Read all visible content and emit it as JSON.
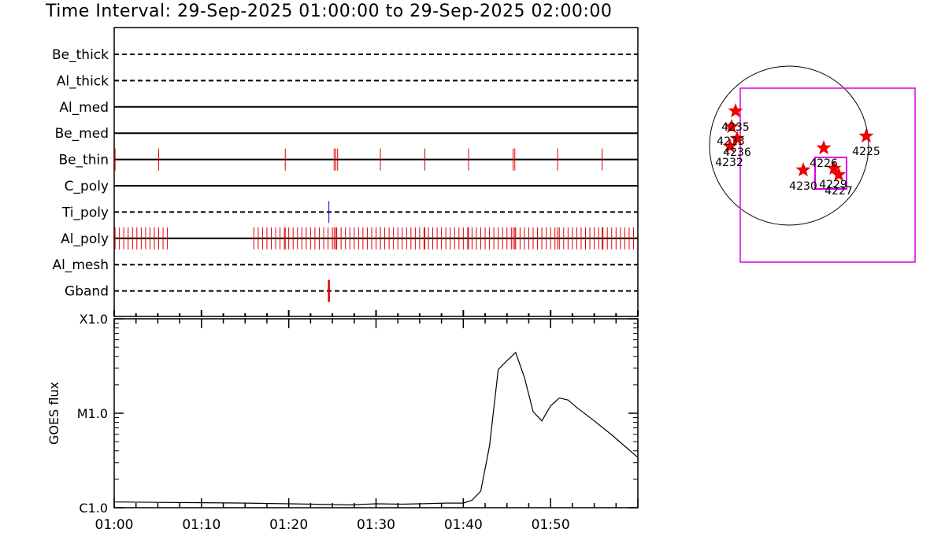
{
  "title": "Time Interval: 29-Sep-2025 01:00:00 to 29-Sep-2025 02:00:00",
  "colors": {
    "axes": "#000000",
    "event_red": "#e00000",
    "event_blue": "#0000cc",
    "map_box": "#dd00dd",
    "star": "#ee0000"
  },
  "chart_data": [
    {
      "type": "event-timeline",
      "x_range": [
        "01:00",
        "02:00"
      ],
      "x_range_minutes": [
        0,
        60
      ],
      "channels": [
        {
          "name": "Be_thick",
          "line": "dashed",
          "events": []
        },
        {
          "name": "Al_thick",
          "line": "dashed",
          "events": []
        },
        {
          "name": "Al_med",
          "line": "solid",
          "events": []
        },
        {
          "name": "Be_med",
          "line": "solid",
          "events": []
        },
        {
          "name": "Be_thin",
          "line": "solid",
          "color": "red",
          "events": [
            0.1,
            5.1,
            19.6,
            25.2,
            25.4,
            25.6,
            30.5,
            35.6,
            40.6,
            45.7,
            45.9,
            50.8,
            55.9
          ]
        },
        {
          "name": "C_poly",
          "line": "solid",
          "events": []
        },
        {
          "name": "Ti_poly",
          "line": "dashed",
          "color": "blue",
          "events": [
            24.6
          ]
        },
        {
          "name": "Al_poly",
          "line": "solid",
          "color": "red",
          "event_groups": [
            {
              "start": 0.1,
              "end": 6.1,
              "step": 0.5
            },
            {
              "start": 16.0,
              "end": 59.9,
              "step": 0.5
            }
          ],
          "extra_events": [
            19.6,
            25.2,
            25.4,
            30.5,
            35.6,
            40.6,
            45.7,
            45.9,
            50.8,
            55.9
          ]
        },
        {
          "name": "Al_mesh",
          "line": "dashed",
          "events": []
        },
        {
          "name": "Gband",
          "line": "dashed",
          "color": "red",
          "events": [
            24.6
          ]
        }
      ]
    },
    {
      "type": "line",
      "ylabel": "GOES flux",
      "yscale": "log",
      "ylim": [
        1e-06,
        0.0001
      ],
      "yticks": [
        {
          "value": 1e-06,
          "label": "C1.0"
        },
        {
          "value": 1e-05,
          "label": "M1.0"
        },
        {
          "value": 0.0001,
          "label": "X1.0"
        }
      ],
      "xticks": [
        "01:00",
        "01:10",
        "01:20",
        "01:30",
        "01:40",
        "01:50"
      ],
      "xtick_minutes": [
        0,
        10,
        20,
        30,
        40,
        50
      ],
      "xlim_minutes": [
        0,
        60
      ],
      "series": [
        {
          "x": [
            0,
            5,
            10,
            15,
            20,
            25,
            27,
            30,
            33,
            35,
            38,
            40,
            41,
            42,
            43,
            44,
            45,
            46,
            47,
            48,
            49,
            50,
            51,
            52,
            53,
            55,
            57,
            60
          ],
          "y": [
            1.15e-06,
            1.14e-06,
            1.13e-06,
            1.12e-06,
            1.1e-06,
            1.08e-06,
            1.07e-06,
            1.1e-06,
            1.09e-06,
            1.1e-06,
            1.12e-06,
            1.12e-06,
            1.2e-06,
            1.5e-06,
            4.5e-06,
            2.9e-05,
            3.6e-05,
            4.4e-05,
            2.4e-05,
            1.04e-05,
            8.3e-06,
            1.2e-05,
            1.45e-05,
            1.38e-05,
            1.15e-05,
            8.3e-06,
            5.9e-06,
            3.4e-06
          ]
        }
      ]
    }
  ],
  "map": {
    "regions": [
      {
        "label": "4225"
      },
      {
        "label": "4226"
      },
      {
        "label": "4227"
      },
      {
        "label": "4229"
      },
      {
        "label": "4230"
      },
      {
        "label": "4232"
      },
      {
        "label": "4233"
      },
      {
        "label": "4235"
      },
      {
        "label": "4236"
      }
    ]
  }
}
